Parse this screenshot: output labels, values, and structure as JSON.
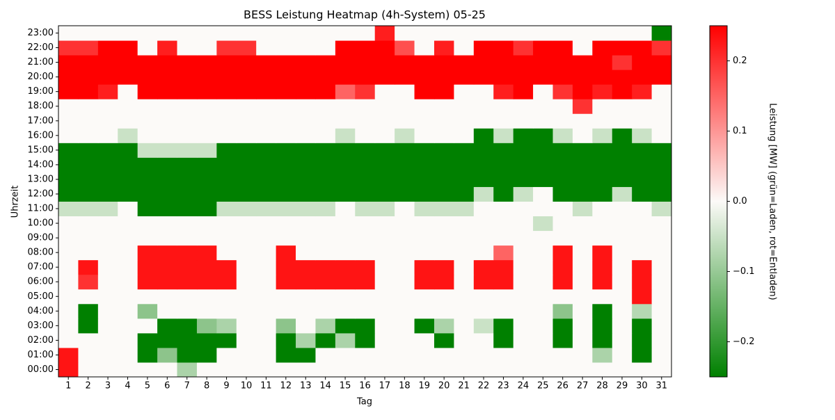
{
  "chart_data": {
    "type": "heatmap",
    "title": "BESS Leistung Heatmap (4h-System) 05-25",
    "x_label": "Tag",
    "y_label": "Uhrzeit",
    "colorbar_label": "Leistung [MW] (grün=Laden, rot=Entladen)",
    "x": [
      1,
      2,
      3,
      4,
      5,
      6,
      7,
      8,
      9,
      10,
      11,
      12,
      13,
      14,
      15,
      16,
      17,
      18,
      19,
      20,
      21,
      22,
      23,
      24,
      25,
      26,
      27,
      28,
      29,
      30,
      31
    ],
    "y": [
      "00:00",
      "01:00",
      "02:00",
      "03:00",
      "04:00",
      "05:00",
      "06:00",
      "07:00",
      "08:00",
      "09:00",
      "10:00",
      "11:00",
      "12:00",
      "13:00",
      "14:00",
      "15:00",
      "16:00",
      "17:00",
      "18:00",
      "19:00",
      "20:00",
      "21:00",
      "22:00",
      "23:00"
    ],
    "z": [
      [
        0.23,
        0,
        0,
        0,
        0,
        0,
        -0.08,
        0,
        0,
        0,
        0,
        0,
        0,
        0,
        0,
        0,
        0,
        0,
        0,
        0,
        0,
        0,
        0,
        0,
        0,
        0,
        0,
        0,
        0,
        0,
        0
      ],
      [
        0.23,
        0,
        0,
        0,
        -0.25,
        -0.11,
        -0.25,
        -0.25,
        0,
        0,
        0,
        -0.25,
        -0.25,
        0,
        0,
        0,
        0,
        0,
        0,
        0,
        0,
        0,
        0,
        0,
        0,
        0,
        0,
        -0.08,
        0,
        -0.25,
        0
      ],
      [
        0,
        0,
        0,
        0,
        -0.25,
        -0.25,
        -0.25,
        -0.25,
        -0.25,
        0,
        0,
        -0.25,
        -0.08,
        -0.25,
        -0.08,
        -0.25,
        0,
        0,
        0,
        -0.25,
        0,
        0,
        -0.25,
        0,
        0,
        -0.25,
        0,
        -0.25,
        0,
        -0.25,
        0
      ],
      [
        0,
        -0.25,
        0,
        0,
        0,
        -0.25,
        -0.25,
        -0.11,
        -0.08,
        0,
        0,
        -0.11,
        0,
        -0.08,
        -0.25,
        -0.25,
        0,
        0,
        -0.25,
        -0.08,
        0,
        -0.05,
        -0.25,
        0,
        0,
        -0.25,
        0,
        -0.25,
        0,
        -0.25,
        0
      ],
      [
        0,
        -0.25,
        0,
        0,
        -0.11,
        0,
        0,
        0,
        0,
        0,
        0,
        0,
        0,
        0,
        0,
        0,
        0,
        0,
        0,
        0,
        0,
        0,
        0,
        0,
        0,
        -0.11,
        0,
        -0.25,
        0,
        -0.07,
        0
      ],
      [
        0,
        0,
        0,
        0,
        0,
        0,
        0,
        0,
        0,
        0,
        0,
        0,
        0,
        0,
        0,
        0,
        0,
        0,
        0,
        0,
        0,
        0,
        0,
        0,
        0,
        0,
        0,
        0,
        0,
        0.23,
        0
      ],
      [
        0,
        0.2,
        0,
        0,
        0.23,
        0.23,
        0.23,
        0.23,
        0.23,
        0,
        0,
        0.23,
        0.23,
        0.23,
        0.23,
        0.23,
        0,
        0,
        0.23,
        0.23,
        0,
        0.23,
        0.23,
        0,
        0,
        0.23,
        0,
        0.23,
        0,
        0.23,
        0
      ],
      [
        0,
        0.23,
        0,
        0,
        0.23,
        0.23,
        0.23,
        0.23,
        0.23,
        0,
        0,
        0.23,
        0.23,
        0.23,
        0.23,
        0.23,
        0,
        0,
        0.23,
        0.23,
        0,
        0.23,
        0.23,
        0,
        0,
        0.23,
        0,
        0.23,
        0,
        0.23,
        0
      ],
      [
        0,
        0,
        0,
        0,
        0.23,
        0.23,
        0.23,
        0.23,
        0,
        0,
        0,
        0.23,
        0,
        0,
        0,
        0,
        0,
        0,
        0,
        0,
        0,
        0,
        0.15,
        0,
        0,
        0.23,
        0,
        0.23,
        0,
        0,
        0
      ],
      [
        0,
        0,
        0,
        0,
        0,
        0,
        0,
        0,
        0,
        0,
        0,
        0,
        0,
        0,
        0,
        0,
        0,
        0,
        0,
        0,
        0,
        0,
        0,
        0,
        0,
        0,
        0,
        0,
        0,
        0,
        0
      ],
      [
        0,
        0,
        0,
        0,
        0,
        0,
        0,
        0,
        0,
        0,
        0,
        0,
        0,
        0,
        0,
        0,
        0,
        0,
        0,
        0,
        0,
        0,
        0,
        0,
        -0.05,
        0,
        0,
        0,
        0,
        0,
        0
      ],
      [
        -0.05,
        -0.05,
        -0.05,
        0,
        -0.25,
        -0.25,
        -0.25,
        -0.25,
        -0.05,
        -0.05,
        -0.05,
        -0.05,
        -0.05,
        -0.05,
        0,
        -0.05,
        -0.05,
        0,
        -0.05,
        -0.05,
        -0.05,
        0,
        0,
        0,
        0,
        0,
        -0.05,
        0,
        0,
        0,
        -0.05
      ],
      [
        -0.25,
        -0.25,
        -0.25,
        -0.25,
        -0.25,
        -0.25,
        -0.25,
        -0.25,
        -0.25,
        -0.25,
        -0.25,
        -0.25,
        -0.25,
        -0.25,
        -0.25,
        -0.25,
        -0.25,
        -0.25,
        -0.25,
        -0.25,
        -0.25,
        -0.05,
        -0.25,
        -0.05,
        0,
        -0.25,
        -0.25,
        -0.25,
        -0.05,
        -0.25,
        -0.25
      ],
      [
        -0.25,
        -0.25,
        -0.25,
        -0.25,
        -0.25,
        -0.25,
        -0.25,
        -0.25,
        -0.25,
        -0.25,
        -0.25,
        -0.25,
        -0.25,
        -0.25,
        -0.25,
        -0.25,
        -0.25,
        -0.25,
        -0.25,
        -0.25,
        -0.25,
        -0.25,
        -0.25,
        -0.25,
        -0.25,
        -0.25,
        -0.25,
        -0.25,
        -0.25,
        -0.25,
        -0.25
      ],
      [
        -0.25,
        -0.25,
        -0.25,
        -0.25,
        -0.25,
        -0.25,
        -0.25,
        -0.25,
        -0.25,
        -0.25,
        -0.25,
        -0.25,
        -0.25,
        -0.25,
        -0.25,
        -0.25,
        -0.25,
        -0.25,
        -0.25,
        -0.25,
        -0.25,
        -0.25,
        -0.25,
        -0.25,
        -0.25,
        -0.25,
        -0.25,
        -0.25,
        -0.25,
        -0.25,
        -0.25
      ],
      [
        -0.25,
        -0.25,
        -0.25,
        -0.25,
        -0.05,
        -0.05,
        -0.05,
        -0.05,
        -0.25,
        -0.25,
        -0.25,
        -0.25,
        -0.25,
        -0.25,
        -0.25,
        -0.25,
        -0.25,
        -0.25,
        -0.25,
        -0.25,
        -0.25,
        -0.25,
        -0.25,
        -0.25,
        -0.25,
        -0.25,
        -0.25,
        -0.25,
        -0.25,
        -0.25,
        -0.25
      ],
      [
        0,
        0,
        0,
        -0.05,
        0,
        0,
        0,
        0,
        0,
        0,
        0,
        0,
        0,
        0,
        -0.05,
        0,
        0,
        -0.05,
        0,
        0,
        0,
        -0.25,
        -0.05,
        -0.25,
        -0.25,
        -0.05,
        0,
        -0.05,
        -0.25,
        -0.05,
        0
      ],
      [
        0,
        0,
        0,
        0,
        0,
        0,
        0,
        0,
        0,
        0,
        0,
        0,
        0,
        0,
        0,
        0,
        0,
        0,
        0,
        0,
        0,
        0,
        0,
        0,
        0,
        0,
        0,
        0,
        0,
        0,
        0
      ],
      [
        0,
        0,
        0,
        0,
        0,
        0,
        0,
        0,
        0,
        0,
        0,
        0,
        0,
        0,
        0,
        0,
        0,
        0,
        0,
        0,
        0,
        0,
        0,
        0,
        0,
        0,
        0.2,
        0,
        0,
        0,
        0
      ],
      [
        0.25,
        0.25,
        0.22,
        0,
        0.25,
        0.25,
        0.25,
        0.25,
        0.25,
        0.25,
        0.25,
        0.25,
        0.25,
        0.25,
        0.15,
        0.2,
        0,
        0,
        0.25,
        0.25,
        0,
        0,
        0.22,
        0.25,
        0,
        0.2,
        0.25,
        0.22,
        0.25,
        0.22,
        0
      ],
      [
        0.25,
        0.25,
        0.25,
        0.25,
        0.25,
        0.25,
        0.25,
        0.25,
        0.25,
        0.25,
        0.25,
        0.25,
        0.25,
        0.25,
        0.25,
        0.25,
        0.25,
        0.25,
        0.25,
        0.25,
        0.25,
        0.25,
        0.25,
        0.25,
        0.25,
        0.25,
        0.25,
        0.25,
        0.25,
        0.25,
        0.25
      ],
      [
        0.25,
        0.25,
        0.25,
        0.25,
        0.25,
        0.25,
        0.25,
        0.25,
        0.25,
        0.25,
        0.25,
        0.25,
        0.25,
        0.25,
        0.25,
        0.25,
        0.25,
        0.25,
        0.25,
        0.25,
        0.25,
        0.25,
        0.25,
        0.25,
        0.25,
        0.25,
        0.25,
        0.25,
        0.2,
        0.25,
        0.25
      ],
      [
        0.2,
        0.2,
        0.25,
        0.25,
        0,
        0.22,
        0,
        0,
        0.2,
        0.2,
        0,
        0,
        0,
        0,
        0.25,
        0.25,
        0.25,
        0.17,
        0,
        0.22,
        0,
        0.25,
        0.25,
        0.2,
        0.25,
        0.25,
        0,
        0.25,
        0.25,
        0.25,
        0.2
      ],
      [
        0,
        0,
        0,
        0,
        0,
        0,
        0,
        0,
        0,
        0,
        0,
        0,
        0,
        0,
        0,
        0,
        0.22,
        0,
        0,
        0,
        0,
        0,
        0,
        0,
        0,
        0,
        0,
        0,
        0,
        0,
        -0.25
      ]
    ],
    "zlim": [
      -0.25,
      0.25
    ],
    "colorbar_ticks": [
      {
        "value": -0.2,
        "label": "−0.2"
      },
      {
        "value": -0.1,
        "label": "−0.1"
      },
      {
        "value": 0,
        "label": "0.0"
      },
      0.1,
      0.2
    ],
    "colors": {
      "min": "#008000",
      "mid": "#fcfaf8",
      "max": "#ff0000"
    }
  }
}
